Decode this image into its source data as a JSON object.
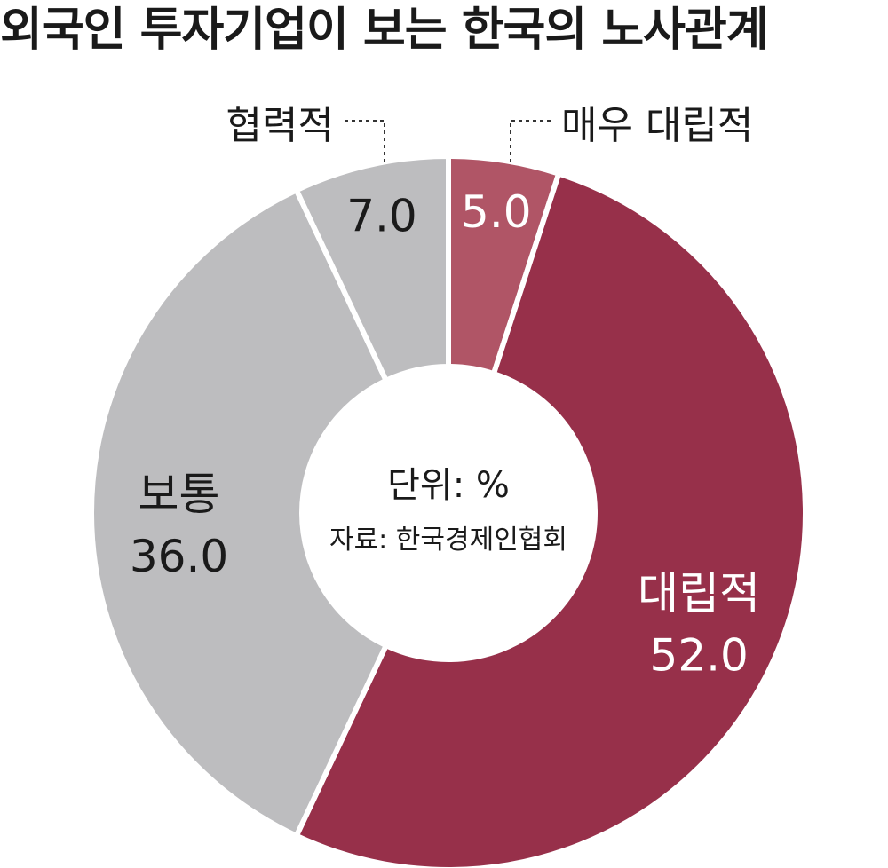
{
  "title": "외국인 투자기업이 보는 한국의 노사관계",
  "center": {
    "unit": "단위: %",
    "source": "자료: 한국경제인협회"
  },
  "colors": {
    "very_confrontational": "#b05566",
    "confrontational": "#97304a",
    "neutral": "#bdbdbf",
    "cooperative": "#bdbdbf",
    "dark_text": "#1a1a1a",
    "light_text": "#ffffff"
  },
  "chart_data": {
    "type": "pie",
    "title": "외국인 투자기업이 보는 한국의 노사관계",
    "unit": "%",
    "categories": [
      "매우 대립적",
      "대립적",
      "보통",
      "협력적"
    ],
    "values": [
      5.0,
      52.0,
      36.0,
      7.0
    ],
    "value_labels": [
      "5.0",
      "52.0",
      "36.0",
      "7.0"
    ],
    "source": "자료: 한국경제인협회"
  }
}
